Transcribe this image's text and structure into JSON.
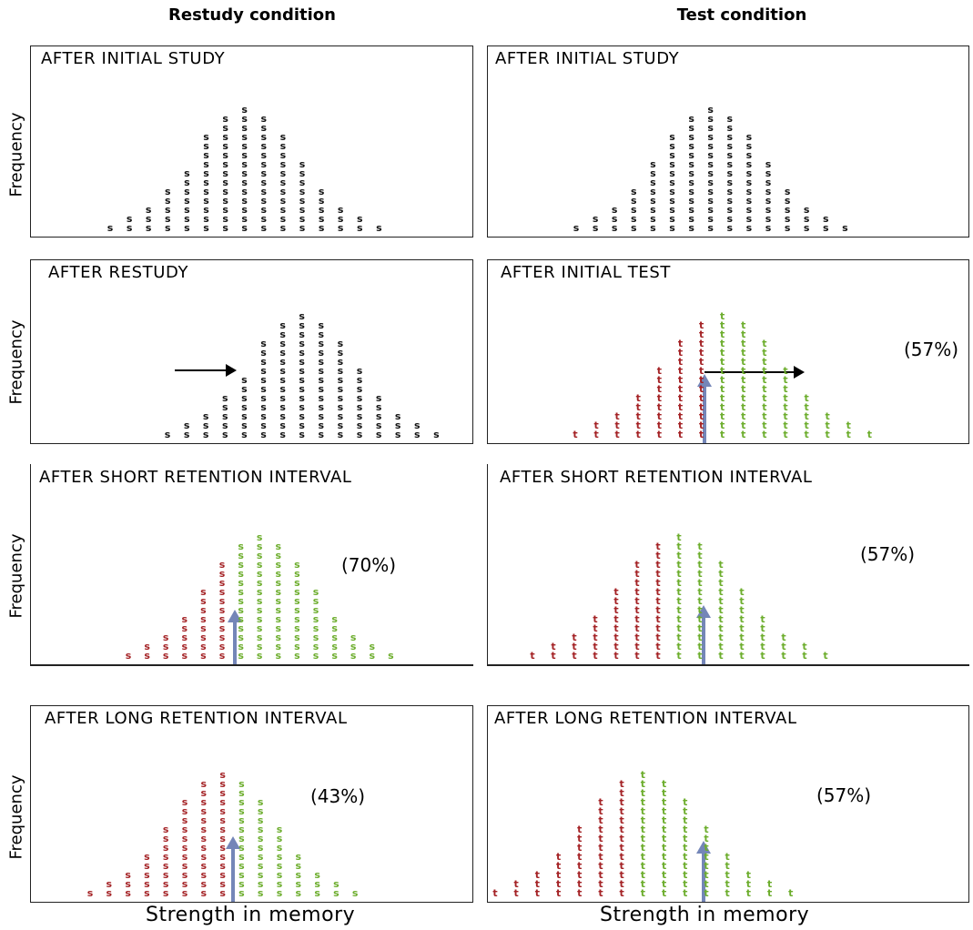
{
  "columns": {
    "left_title": "Restudy condition",
    "right_title": "Test condition"
  },
  "ylabel": "Frequency",
  "xlabel": "Strength in memory",
  "colors": {
    "black": "#111111",
    "red": "#a42225",
    "green": "#6cad2c",
    "arrow": "#7486b8"
  },
  "panels": [
    {
      "title": "AFTER INITIAL STUDY",
      "letter": "s",
      "chart_data": {
        "type": "dot-histogram",
        "stacks": [
          [
            1
          ],
          [
            2
          ],
          [
            3
          ],
          [
            5
          ],
          [
            7
          ],
          [
            11
          ],
          [
            13
          ],
          [
            14
          ],
          [
            13
          ],
          [
            11
          ],
          [
            8
          ],
          [
            5
          ],
          [
            3
          ],
          [
            2
          ],
          [
            1
          ]
        ],
        "colors": [
          "black",
          "black",
          "black",
          "black",
          "black",
          "black",
          "black",
          "black",
          "black",
          "black",
          "black",
          "black",
          "black",
          "black",
          "black"
        ]
      }
    },
    {
      "title": "AFTER INITIAL STUDY",
      "letter": "s",
      "chart_data": {
        "type": "dot-histogram",
        "stacks": [
          [
            1
          ],
          [
            2
          ],
          [
            3
          ],
          [
            5
          ],
          [
            8
          ],
          [
            11
          ],
          [
            13
          ],
          [
            14
          ],
          [
            13
          ],
          [
            11
          ],
          [
            8
          ],
          [
            5
          ],
          [
            3
          ],
          [
            2
          ],
          [
            1
          ]
        ],
        "colors": [
          "black",
          "black",
          "black",
          "black",
          "black",
          "black",
          "black",
          "black",
          "black",
          "black",
          "black",
          "black",
          "black",
          "black",
          "black"
        ]
      }
    },
    {
      "title": "AFTER RESTUDY",
      "letter": "s",
      "chart_data": {
        "type": "dot-histogram",
        "stacks": [
          [
            1
          ],
          [
            2
          ],
          [
            3
          ],
          [
            5
          ],
          [
            7
          ],
          [
            11
          ],
          [
            13
          ],
          [
            14
          ],
          [
            13
          ],
          [
            11
          ],
          [
            8
          ],
          [
            5
          ],
          [
            3
          ],
          [
            2
          ],
          [
            1
          ]
        ],
        "colors": [
          "black",
          "black",
          "black",
          "black",
          "black",
          "black",
          "black",
          "black",
          "black",
          "black",
          "black",
          "black",
          "black",
          "black",
          "black"
        ]
      }
    },
    {
      "title": "AFTER INITIAL TEST",
      "letter": "t",
      "percent": "(57%)",
      "chart_data": {
        "type": "dot-histogram",
        "stacks": [
          [
            1
          ],
          [
            2
          ],
          [
            3
          ],
          [
            5
          ],
          [
            8
          ],
          [
            11
          ],
          [
            13
          ],
          [
            14
          ],
          [
            13
          ],
          [
            11
          ],
          [
            8
          ],
          [
            5
          ],
          [
            3
          ],
          [
            2
          ],
          [
            1
          ]
        ],
        "colors": [
          "red",
          "red",
          "red",
          "red",
          "red",
          "red",
          "red",
          "green",
          "green",
          "green",
          "green",
          "green",
          "green",
          "green",
          "green"
        ]
      }
    },
    {
      "title": "AFTER SHORT RETENTION INTERVAL",
      "letter": "s",
      "percent": "(70%)",
      "chart_data": {
        "type": "dot-histogram",
        "stacks": [
          [
            1
          ],
          [
            2
          ],
          [
            3
          ],
          [
            5
          ],
          [
            8
          ],
          [
            11
          ],
          [
            13
          ],
          [
            14
          ],
          [
            13
          ],
          [
            11
          ],
          [
            8
          ],
          [
            5
          ],
          [
            3
          ],
          [
            2
          ],
          [
            1
          ]
        ],
        "colors": [
          "red",
          "red",
          "red",
          "red",
          "red",
          "red",
          "green",
          "green",
          "green",
          "green",
          "green",
          "green",
          "green",
          "green",
          "green"
        ]
      }
    },
    {
      "title": "AFTER SHORT RETENTION INTERVAL",
      "letter": "t",
      "percent": "(57%)",
      "chart_data": {
        "type": "dot-histogram",
        "stacks": [
          [
            1
          ],
          [
            2
          ],
          [
            3
          ],
          [
            5
          ],
          [
            8
          ],
          [
            11
          ],
          [
            13
          ],
          [
            14
          ],
          [
            13
          ],
          [
            11
          ],
          [
            8
          ],
          [
            5
          ],
          [
            3
          ],
          [
            2
          ],
          [
            1
          ]
        ],
        "colors": [
          "red",
          "red",
          "red",
          "red",
          "red",
          "red",
          "red",
          "green",
          "green",
          "green",
          "green",
          "green",
          "green",
          "green",
          "green"
        ]
      }
    },
    {
      "title": "AFTER LONG RETENTION INTERVAL",
      "letter": "s",
      "percent": "(43%)",
      "chart_data": {
        "type": "dot-histogram",
        "stacks": [
          [
            1
          ],
          [
            2
          ],
          [
            3
          ],
          [
            5
          ],
          [
            8
          ],
          [
            11
          ],
          [
            13
          ],
          [
            14
          ],
          [
            13
          ],
          [
            11
          ],
          [
            8
          ],
          [
            5
          ],
          [
            3
          ],
          [
            2
          ],
          [
            1
          ]
        ],
        "colors": [
          "red",
          "red",
          "red",
          "red",
          "red",
          "red",
          "red",
          "red",
          "green",
          "green",
          "green",
          "green",
          "green",
          "green",
          "green"
        ]
      }
    },
    {
      "title": "AFTER LONG RETENTION INTERVAL",
      "letter": "t",
      "percent": "(57%)",
      "chart_data": {
        "type": "dot-histogram",
        "stacks": [
          [
            1
          ],
          [
            2
          ],
          [
            3
          ],
          [
            5
          ],
          [
            8
          ],
          [
            11
          ],
          [
            13
          ],
          [
            14
          ],
          [
            13
          ],
          [
            11
          ],
          [
            8
          ],
          [
            5
          ],
          [
            3
          ],
          [
            2
          ],
          [
            1
          ]
        ],
        "colors": [
          "red",
          "red",
          "red",
          "red",
          "red",
          "red",
          "red",
          "green",
          "green",
          "green",
          "green",
          "green",
          "green",
          "green",
          "green"
        ]
      }
    }
  ]
}
